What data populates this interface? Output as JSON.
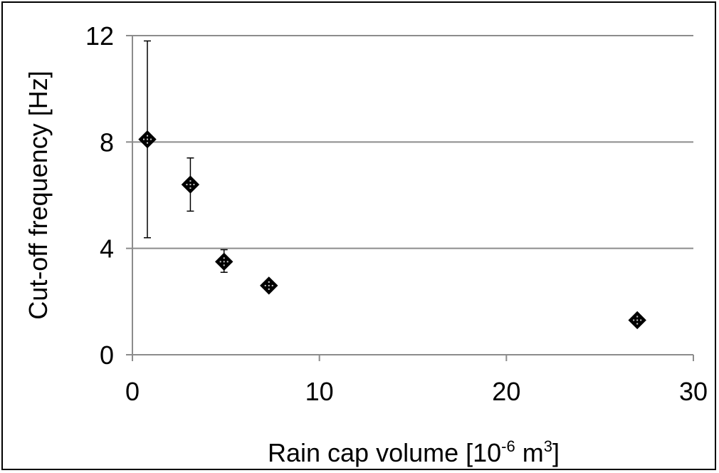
{
  "chart_data": {
    "type": "scatter",
    "xlabel_main": "Rain cap volume [10",
    "xlabel_sup1": "-6",
    "xlabel_mid": " m",
    "xlabel_sup2": "3",
    "xlabel_end": "]",
    "ylabel": "Cut-off frequency [Hz]",
    "xlim": [
      0,
      30
    ],
    "ylim": [
      0,
      12
    ],
    "xticks": [
      0,
      10,
      20,
      30
    ],
    "yticks": [
      0,
      4,
      8,
      12
    ],
    "grid": "horizontal",
    "points": [
      {
        "x": 0.8,
        "y": 8.1,
        "err_low": 4.4,
        "err_high": 11.8
      },
      {
        "x": 3.1,
        "y": 6.4,
        "err_low": 5.4,
        "err_high": 7.4
      },
      {
        "x": 4.9,
        "y": 3.5,
        "err_low": 3.1,
        "err_high": 3.95
      },
      {
        "x": 7.3,
        "y": 2.6,
        "err_low": null,
        "err_high": null
      },
      {
        "x": 27.0,
        "y": 1.3,
        "err_low": null,
        "err_high": null
      }
    ],
    "marker_color": "#000000",
    "grid_color": "#8c8c8c"
  }
}
